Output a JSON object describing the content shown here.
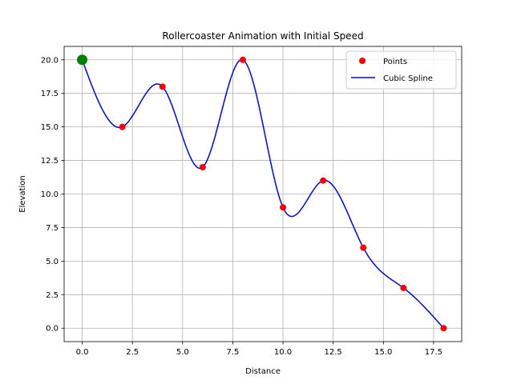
{
  "chart_data": {
    "type": "line",
    "title": "Rollercoaster Animation with Initial Speed",
    "xlabel": "Distance",
    "ylabel": "Elevation",
    "xlim": [
      -0.9,
      18.9
    ],
    "ylim": [
      -1.0,
      21.0
    ],
    "xticks": [
      0.0,
      2.5,
      5.0,
      7.5,
      10.0,
      12.5,
      15.0,
      17.5
    ],
    "yticks": [
      0.0,
      2.5,
      5.0,
      7.5,
      10.0,
      12.5,
      15.0,
      17.5,
      20.0
    ],
    "grid": true,
    "legend_position": "top-right",
    "series": [
      {
        "name": "Points",
        "kind": "markers",
        "color": "#ff0000",
        "x": [
          0,
          2,
          4,
          6,
          8,
          10,
          12,
          14,
          16,
          18
        ],
        "y": [
          20,
          15,
          18,
          12,
          20,
          9,
          11,
          6,
          3,
          0
        ]
      },
      {
        "name": "Cubic Spline",
        "kind": "line",
        "color": "#0000ff",
        "x": [
          0,
          2,
          4,
          6,
          8,
          10,
          12,
          14,
          16,
          18
        ],
        "y": [
          20,
          15,
          18,
          12,
          20,
          9,
          11,
          6,
          3,
          0
        ]
      }
    ],
    "marker": {
      "x": 0,
      "y": 20,
      "color": "#008000"
    }
  }
}
